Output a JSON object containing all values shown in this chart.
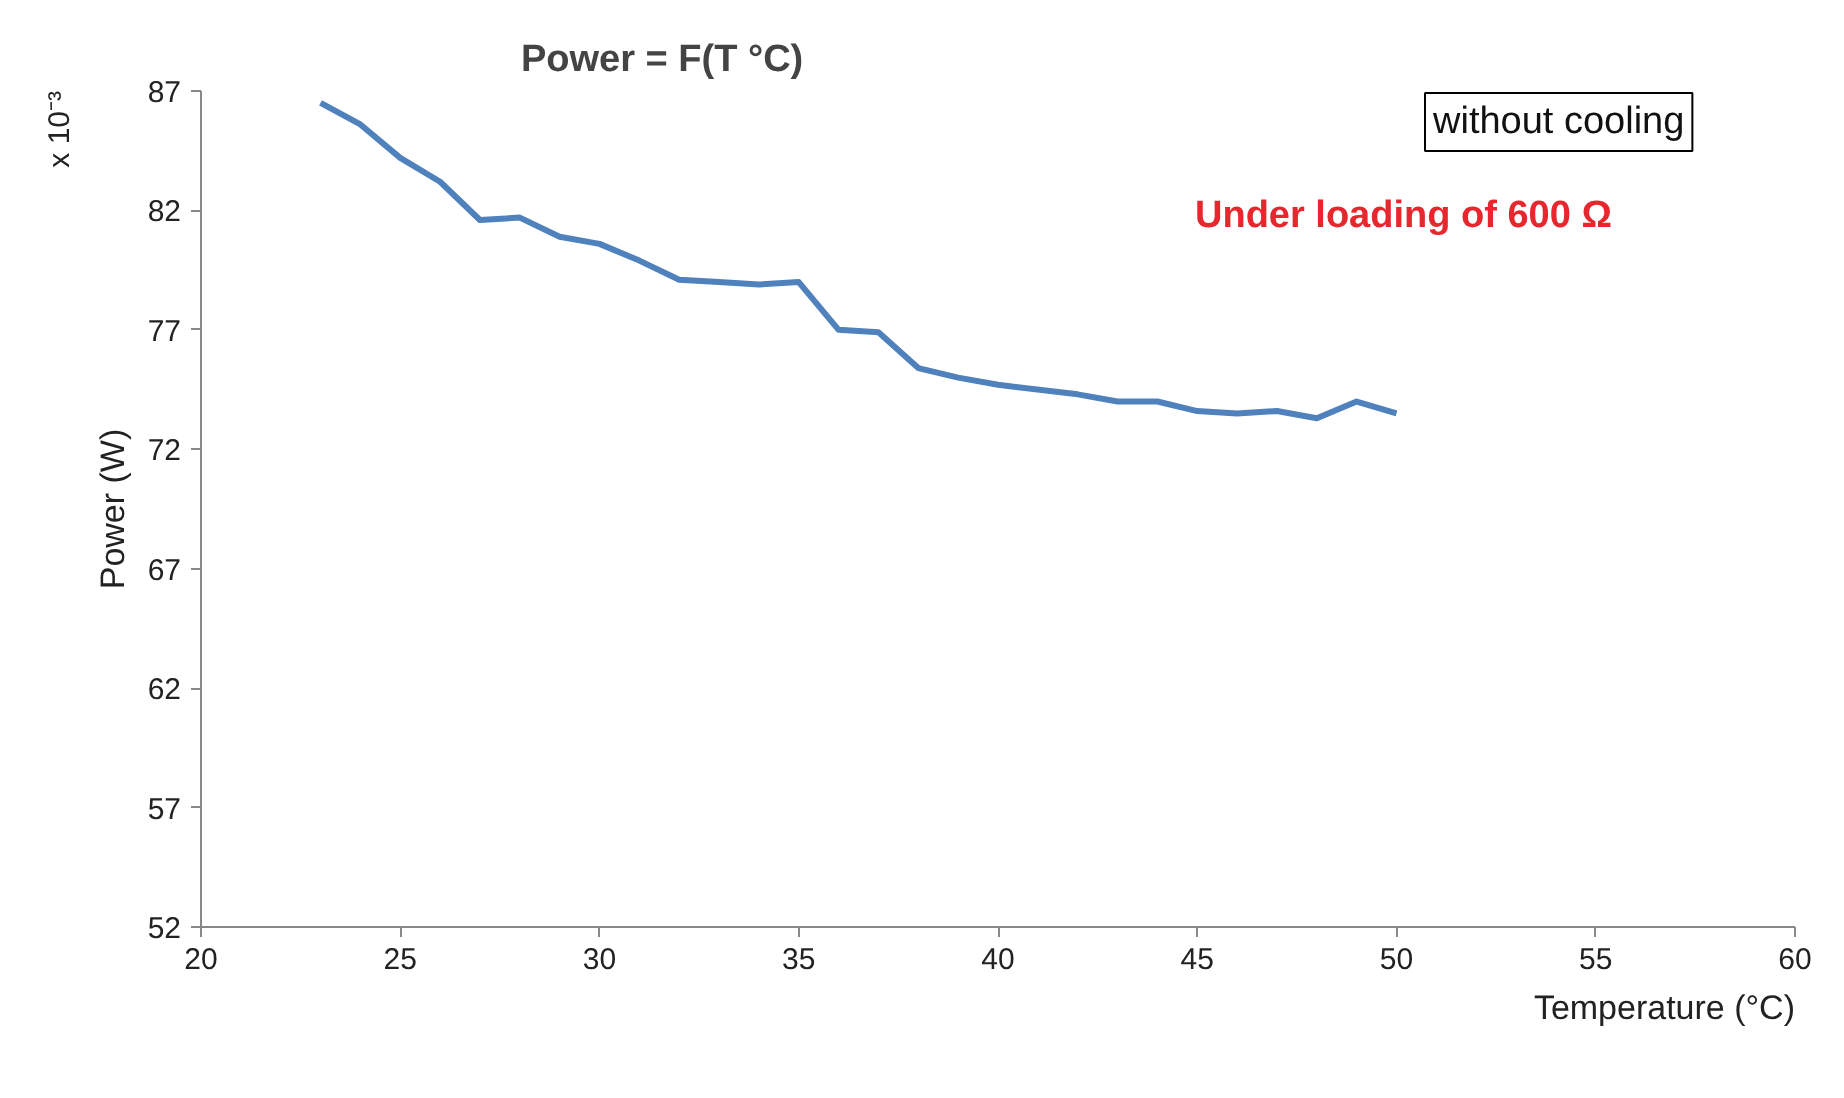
{
  "chart_data": {
    "type": "line",
    "title": "Power = F(T °C)",
    "xlabel": "Temperature (°C)",
    "ylabel": "Power (W)",
    "annotations": [
      "x 10⁻³",
      "without cooling",
      "Under loading of 600 Ω"
    ],
    "x": [
      23,
      24,
      25,
      26,
      27,
      28,
      29,
      30,
      31,
      32,
      33,
      34,
      35,
      36,
      37,
      38,
      39,
      40,
      42,
      43,
      44,
      45,
      46,
      47,
      48,
      49,
      50
    ],
    "series": [
      {
        "color": "#4f81bd",
        "values": [
          86.5,
          85.6,
          84.2,
          83.2,
          81.6,
          81.7,
          80.9,
          80.6,
          79.9,
          79.1,
          79.0,
          78.9,
          79.0,
          77.0,
          76.9,
          75.4,
          75.0,
          74.7,
          74.3,
          74.0,
          74.0,
          73.6,
          73.5,
          73.6,
          73.3,
          74.0,
          73.5
        ]
      }
    ],
    "xlim": [
      20,
      60
    ],
    "xticks": [
      20,
      25,
      30,
      35,
      40,
      45,
      50,
      55,
      60
    ],
    "ylim": [
      52,
      87
    ],
    "yticks": [
      52,
      57,
      62,
      67,
      72,
      77,
      82,
      87
    ],
    "grid": false,
    "marker": "none",
    "line_style": "solid"
  }
}
